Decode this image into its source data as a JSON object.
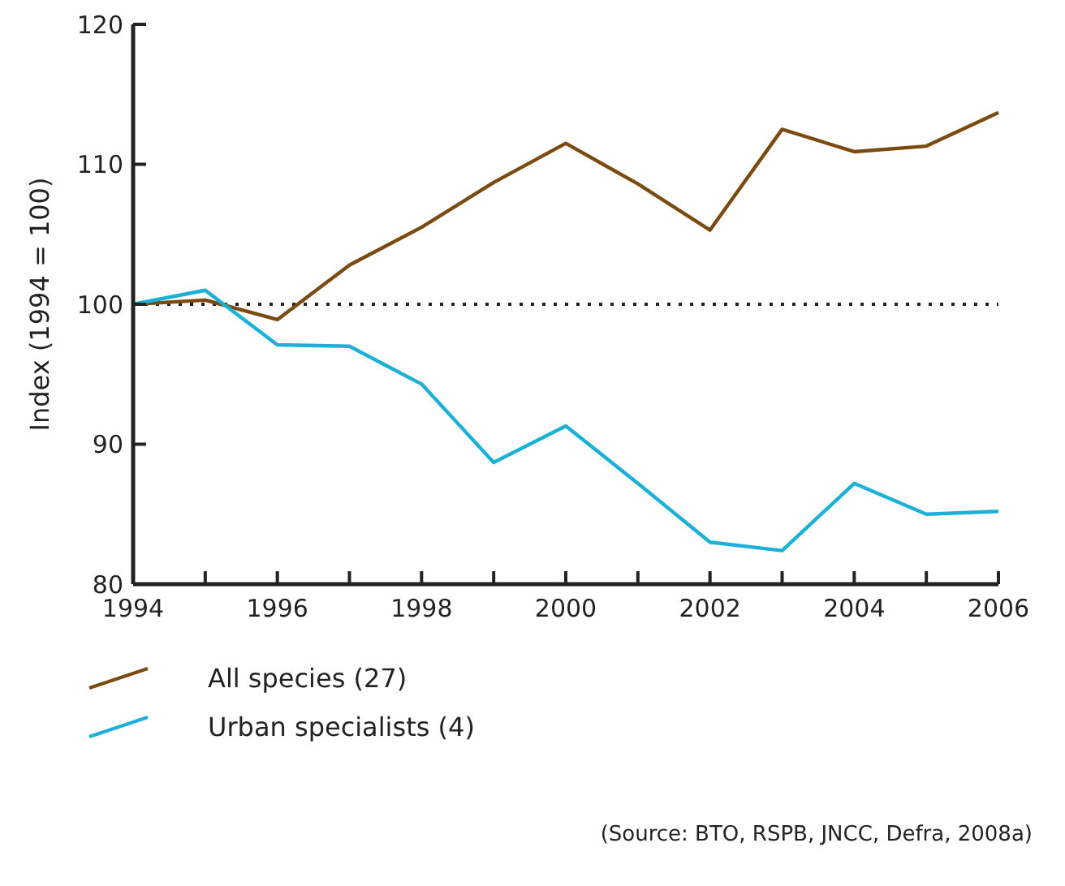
{
  "chart_data": {
    "type": "line",
    "ylabel": "Index (1994 = 100)",
    "x": [
      1994,
      1995,
      1996,
      1997,
      1998,
      1999,
      2000,
      2001,
      2002,
      2003,
      2004,
      2005,
      2006
    ],
    "series": [
      {
        "name": "All species (27)",
        "color": "#7a4a10",
        "values": [
          100,
          100.3,
          98.9,
          102.8,
          105.5,
          108.7,
          111.5,
          108.6,
          105.3,
          112.5,
          110.9,
          111.3,
          113.7
        ]
      },
      {
        "name": "Urban specialists (4)",
        "color": "#1ab0d8",
        "values": [
          100,
          101,
          97.1,
          97,
          94.3,
          88.7,
          91.3,
          87.2,
          83,
          82.4,
          87.2,
          85,
          85.2
        ]
      }
    ],
    "xlim": [
      1994,
      2006
    ],
    "xticks": [
      1994,
      {
        "value": 1995,
        "label": null
      },
      1996,
      {
        "value": 1997,
        "label": null
      },
      1998,
      {
        "value": 1999,
        "label": null
      },
      2000,
      {
        "value": 2001,
        "label": null
      },
      2002,
      {
        "value": 2003,
        "label": null
      },
      2004,
      {
        "value": 2005,
        "label": null
      },
      2006
    ],
    "ylim": [
      80,
      120
    ],
    "yticks": [
      80,
      90,
      100,
      110,
      120
    ],
    "ref_lines": [
      {
        "axis": "y",
        "value": 100,
        "color": "#222222",
        "line_style": "dotted"
      }
    ],
    "legend": "bottom left",
    "grid": false,
    "marker": "none",
    "line_style": "solid",
    "annotations": [
      "(Source: BTO, RSPB, JNCC, Defra, 2008a)"
    ]
  }
}
